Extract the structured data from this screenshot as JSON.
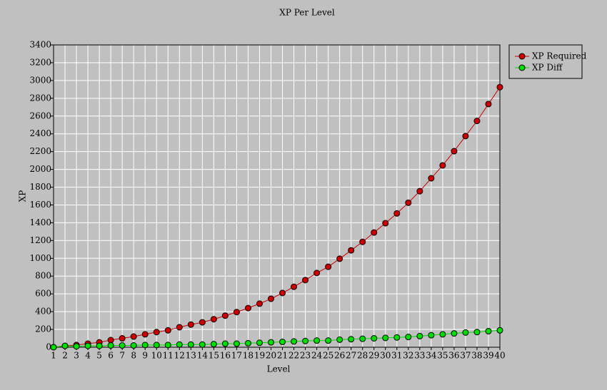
{
  "chart_data": {
    "type": "line",
    "title": "XP Per Level",
    "x_label": "Level",
    "y_label": "XP",
    "x": [
      1,
      2,
      3,
      4,
      5,
      6,
      7,
      8,
      9,
      10,
      11,
      12,
      13,
      14,
      15,
      16,
      17,
      18,
      19,
      20,
      21,
      22,
      23,
      24,
      25,
      26,
      27,
      28,
      29,
      30,
      31,
      32,
      33,
      34,
      35,
      36,
      37,
      38,
      39,
      40
    ],
    "series": [
      {
        "name": "XP Required",
        "color": "#cc0000",
        "values": [
          0,
          15,
          25,
          40,
          55,
          80,
          100,
          120,
          145,
          170,
          190,
          225,
          255,
          280,
          315,
          355,
          395,
          440,
          490,
          545,
          610,
          680,
          755,
          835,
          905,
          995,
          1090,
          1185,
          1290,
          1395,
          1505,
          1625,
          1755,
          1900,
          2045,
          2205,
          2375,
          2545,
          2735,
          2925
        ]
      },
      {
        "name": "XP Diff",
        "color": "#00dd00",
        "values": [
          0,
          15,
          10,
          15,
          15,
          20,
          20,
          20,
          25,
          25,
          25,
          30,
          30,
          30,
          35,
          40,
          40,
          45,
          50,
          55,
          60,
          65,
          70,
          75,
          75,
          85,
          90,
          95,
          100,
          105,
          110,
          115,
          125,
          135,
          145,
          155,
          165,
          170,
          180,
          190
        ]
      }
    ],
    "xlim": [
      1,
      40
    ],
    "xticks": [
      1,
      2,
      3,
      4,
      5,
      6,
      7,
      8,
      9,
      10,
      11,
      12,
      13,
      14,
      15,
      16,
      17,
      18,
      19,
      20,
      21,
      22,
      23,
      24,
      25,
      26,
      27,
      28,
      29,
      30,
      31,
      32,
      33,
      34,
      35,
      36,
      37,
      38,
      39,
      40
    ],
    "ylim": [
      0,
      3400
    ],
    "yticks": [
      0,
      200,
      400,
      600,
      800,
      1000,
      1200,
      1400,
      1600,
      1800,
      2000,
      2200,
      2400,
      2600,
      2800,
      3000,
      3200,
      3400
    ],
    "grid": true,
    "legend": "right"
  }
}
